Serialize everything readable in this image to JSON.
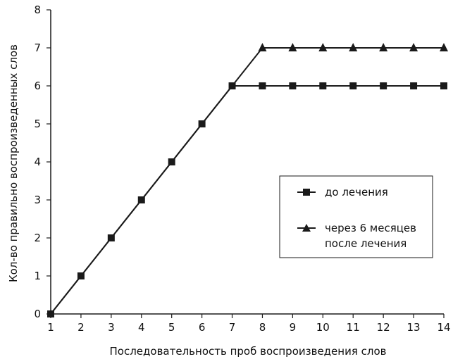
{
  "chart_data": {
    "type": "line",
    "title": "",
    "xlabel": "Последовательность проб воспроизведения слов",
    "ylabel": "Кол-во правильно воспроизведенных слов",
    "x": [
      1,
      2,
      3,
      4,
      5,
      6,
      7,
      8,
      9,
      10,
      11,
      12,
      13,
      14
    ],
    "xlim": [
      1,
      14
    ],
    "ylim": [
      0,
      8
    ],
    "yticks": [
      0,
      1,
      2,
      3,
      4,
      5,
      6,
      7,
      8
    ],
    "xticks": [
      1,
      2,
      3,
      4,
      5,
      6,
      7,
      8,
      9,
      10,
      11,
      12,
      13,
      14
    ],
    "grid": false,
    "legend_position": "right",
    "series": [
      {
        "name": "до лечения",
        "marker": "square",
        "values": [
          0,
          1,
          2,
          3,
          4,
          5,
          6,
          6,
          6,
          6,
          6,
          6,
          6,
          6
        ]
      },
      {
        "name": "через 6 месяцев после лечения",
        "name_lines": [
          "через 6 месяцев",
          "после лечения"
        ],
        "marker": "triangle",
        "values": [
          0,
          1,
          2,
          3,
          4,
          5,
          6,
          7,
          7,
          7,
          7,
          7,
          7,
          7
        ]
      }
    ],
    "colors": {
      "line": "#1a1a1a",
      "marker": "#1a1a1a",
      "axis": "#1a1a1a"
    }
  }
}
